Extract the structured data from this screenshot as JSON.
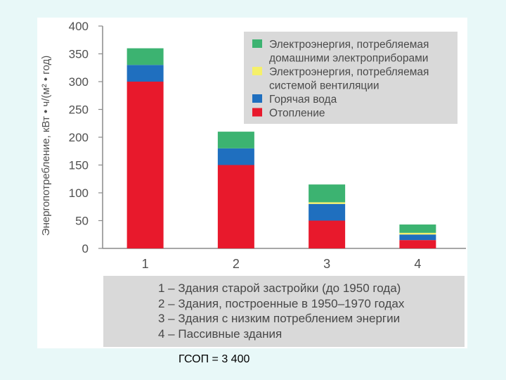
{
  "chart_data": {
    "type": "bar",
    "stacked": true,
    "ylabel": "Энергопотребление, кВт • ч/(м² • год)",
    "ylim": [
      0,
      400
    ],
    "yticks": [
      0,
      50,
      100,
      150,
      200,
      250,
      300,
      350,
      400
    ],
    "categories": [
      "1",
      "2",
      "3",
      "4"
    ],
    "series": [
      {
        "name": "Отопление",
        "color": "#e8192c",
        "values": [
          300,
          150,
          50,
          15
        ]
      },
      {
        "name": "Горячая вода",
        "color": "#1f6fbf",
        "values": [
          30,
          30,
          30,
          10
        ]
      },
      {
        "name": "Электроэнергия, потребляемая системой вентиляции",
        "color": "#f5f06a",
        "values": [
          0,
          0,
          3,
          3
        ]
      },
      {
        "name": "Электроэнергия, потребляемая домашними электроприборами",
        "color": "#3cb371",
        "values": [
          30,
          30,
          32,
          15
        ]
      }
    ],
    "legend": {
      "placement": "top-right",
      "entries": [
        {
          "series": 3,
          "lines": [
            "Электроэнергия, потребляемая",
            "домашними электроприборами"
          ]
        },
        {
          "series": 2,
          "lines": [
            "Электроэнергия, потребляемая",
            "системой вентиляции"
          ]
        },
        {
          "series": 1,
          "lines": [
            "Горячая вода"
          ]
        },
        {
          "series": 0,
          "lines": [
            "Отопление"
          ]
        }
      ]
    },
    "grid": false
  },
  "notes": [
    "1 – Здания старой застройки (до 1950 года)",
    "2 – Здания, построенные в 1950–1970 годах",
    "3 – Здания с низким потреблением энергии",
    "4 – Пассивные здания"
  ],
  "caption": "ГСОП = 3 400"
}
